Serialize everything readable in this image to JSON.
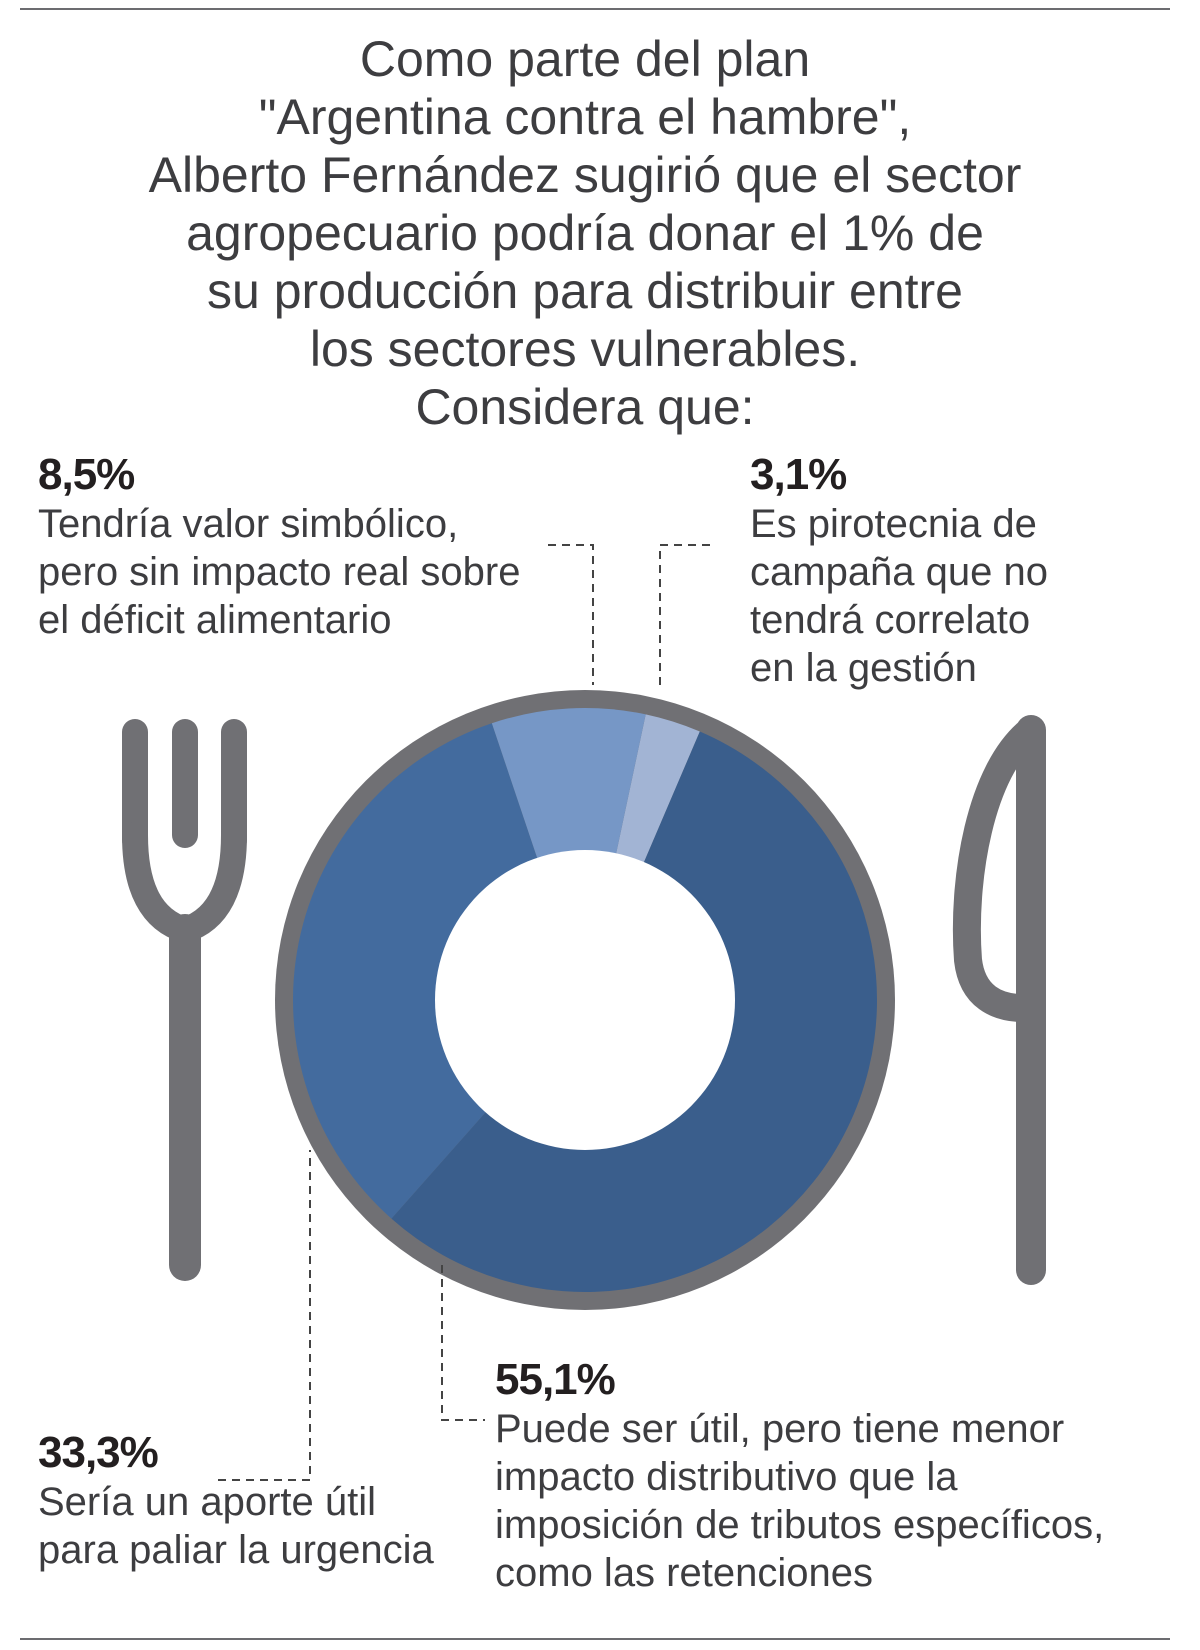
{
  "title_lines": [
    "Como parte del plan",
    "\"Argentina contra el hambre\",",
    "Alberto Fernández sugirió que el sector",
    "agropecuario podría donar el 1% de",
    "su producción para distribuir entre",
    "los sectores vulnerables.",
    "Considera que:"
  ],
  "chart_data": {
    "type": "pie",
    "style": "donut",
    "title": "Considera que:",
    "slices": [
      {
        "key": "pirotecnia",
        "value": 3.1,
        "label": "3,1%",
        "description": [
          "Es pirotecnia de",
          "campaña que no",
          "tendrá correlato",
          "en la gestión"
        ],
        "color": "#a2b4d4"
      },
      {
        "key": "retenciones",
        "value": 55.1,
        "label": "55,1%",
        "description": [
          "Puede ser útil, pero tiene menor",
          "impacto distributivo que la",
          "imposición de tributos específicos,",
          "como las retenciones"
        ],
        "color": "#3a5e8c"
      },
      {
        "key": "urgencia",
        "value": 33.3,
        "label": "33,3%",
        "description": [
          "Sería un aporte útil",
          "para paliar la urgencia"
        ],
        "color": "#436b9e"
      },
      {
        "key": "simbolico",
        "value": 8.5,
        "label": "8,5%",
        "description": [
          "Tendría valor simbólico,",
          "pero sin impacto real sobre",
          "el déficit alimentario"
        ],
        "color": "#7697c6"
      }
    ]
  },
  "colors": {
    "plate_rim": "#707074",
    "cutlery": "#707074",
    "leader": "#444444"
  }
}
